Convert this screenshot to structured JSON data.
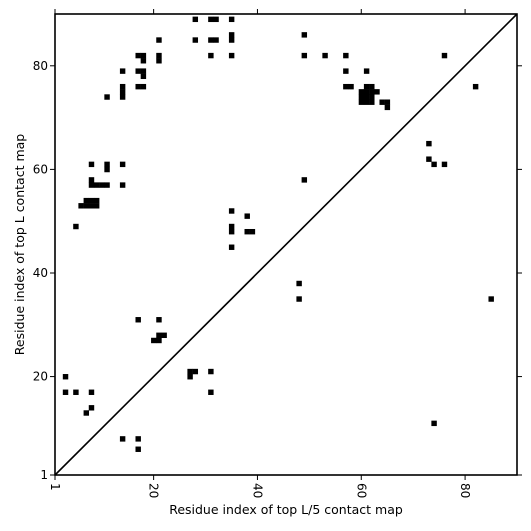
{
  "chart_data": {
    "type": "heatmap",
    "title": "",
    "xlabel": "Residue index of top L/5 contact map",
    "ylabel": "Residue index of top L contact map",
    "xlim": [
      1,
      90
    ],
    "ylim": [
      1,
      90
    ],
    "x_ticks": [
      1,
      20,
      40,
      60,
      80
    ],
    "y_ticks": [
      1,
      20,
      40,
      60,
      80
    ],
    "x_tick_labels": [
      "1",
      "20",
      "40",
      "60",
      "80"
    ],
    "y_tick_labels": [
      "1",
      "20",
      "40",
      "60",
      "80"
    ],
    "x_tick_rotation_deg": 90,
    "diagonal": true,
    "grid": false,
    "cell_color": "#000000",
    "background_color": "#ffffff",
    "upper_triangle_cells": [
      [
        28,
        89
      ],
      [
        31,
        89
      ],
      [
        32,
        89
      ],
      [
        35,
        89
      ],
      [
        49,
        86
      ],
      [
        28,
        85
      ],
      [
        31,
        85
      ],
      [
        32,
        85
      ],
      [
        35,
        85
      ],
      [
        21,
        85
      ],
      [
        35,
        86
      ],
      [
        17,
        82
      ],
      [
        18,
        82
      ],
      [
        21,
        82
      ],
      [
        31,
        82
      ],
      [
        35,
        82
      ],
      [
        49,
        82
      ],
      [
        53,
        82
      ],
      [
        57,
        82
      ],
      [
        76,
        82
      ],
      [
        18,
        81
      ],
      [
        21,
        81
      ],
      [
        14,
        79
      ],
      [
        17,
        79
      ],
      [
        18,
        79
      ],
      [
        57,
        79
      ],
      [
        61,
        79
      ],
      [
        18,
        78
      ],
      [
        17,
        76
      ],
      [
        18,
        76
      ],
      [
        14,
        76
      ],
      [
        57,
        76
      ],
      [
        58,
        76
      ],
      [
        61,
        76
      ],
      [
        62,
        76
      ],
      [
        82,
        76
      ],
      [
        14,
        75
      ],
      [
        60,
        75
      ],
      [
        61,
        75
      ],
      [
        62,
        75
      ],
      [
        63,
        75
      ],
      [
        11,
        74
      ],
      [
        14,
        74
      ],
      [
        60,
        74
      ],
      [
        61,
        74
      ],
      [
        62,
        74
      ],
      [
        60,
        73
      ],
      [
        61,
        73
      ],
      [
        62,
        73
      ],
      [
        64,
        73
      ],
      [
        65,
        73
      ],
      [
        65,
        72
      ],
      [
        73,
        65
      ],
      [
        73,
        62
      ],
      [
        8,
        61
      ],
      [
        11,
        61
      ],
      [
        14,
        61
      ],
      [
        74,
        61
      ],
      [
        76,
        61
      ],
      [
        11,
        60
      ],
      [
        49,
        58
      ],
      [
        8,
        58
      ],
      [
        8,
        57
      ],
      [
        9,
        57
      ],
      [
        10,
        57
      ],
      [
        11,
        57
      ],
      [
        14,
        57
      ],
      [
        7,
        54
      ],
      [
        8,
        54
      ],
      [
        9,
        54
      ],
      [
        6,
        53
      ],
      [
        7,
        53
      ],
      [
        8,
        53
      ],
      [
        9,
        53
      ],
      [
        35,
        52
      ],
      [
        38,
        51
      ],
      [
        5,
        49
      ],
      [
        35,
        49
      ],
      [
        35,
        48
      ],
      [
        38,
        48
      ],
      [
        39,
        48
      ],
      [
        35,
        45
      ]
    ],
    "lower_triangle_cells": [
      [
        48,
        38
      ],
      [
        48,
        35
      ],
      [
        85,
        35
      ],
      [
        17,
        31
      ],
      [
        21,
        31
      ],
      [
        21,
        28
      ],
      [
        22,
        28
      ],
      [
        20,
        27
      ],
      [
        21,
        27
      ],
      [
        27,
        21
      ],
      [
        28,
        21
      ],
      [
        31,
        21
      ],
      [
        27,
        20
      ],
      [
        3,
        20
      ],
      [
        3,
        17
      ],
      [
        5,
        17
      ],
      [
        8,
        17
      ],
      [
        31,
        17
      ],
      [
        8,
        14
      ],
      [
        7,
        13
      ],
      [
        74,
        11
      ],
      [
        14,
        8
      ],
      [
        17,
        8
      ],
      [
        17,
        6
      ]
    ]
  }
}
